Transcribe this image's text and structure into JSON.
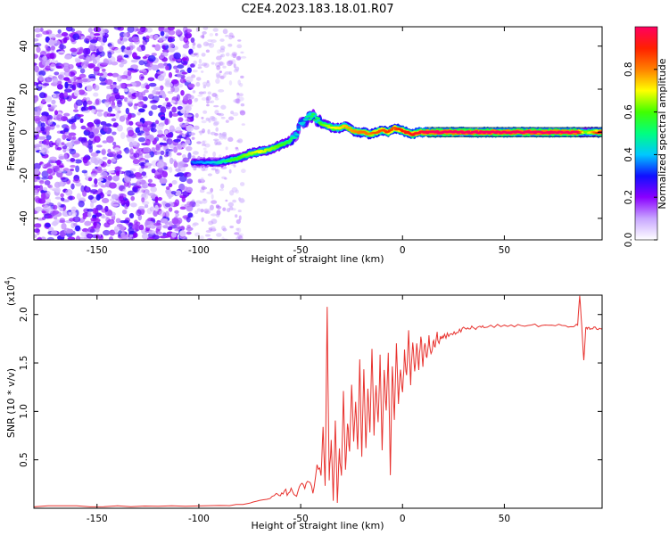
{
  "figure": {
    "title": "C2E4.2023.183.18.01.R07"
  },
  "chart_data": [
    {
      "type": "heatmap",
      "name": "spectrogram",
      "title": "C2E4.2023.183.18.01.R07",
      "xlabel": "Height of straight line (km)",
      "ylabel": "Frequency (Hz)",
      "xlim": [
        -181,
        98
      ],
      "ylim": [
        -50,
        49
      ],
      "xticks": [
        -150,
        -100,
        -50,
        0,
        50
      ],
      "yticks": [
        -40,
        -20,
        0,
        20,
        40
      ],
      "colorbar": {
        "label": "Normalized spectral amplitude",
        "range": [
          0,
          1
        ],
        "ticks": [
          "0.0",
          "0.2",
          "0.4",
          "0.6",
          "0.8"
        ],
        "tick_values": [
          0.0,
          0.2,
          0.4,
          0.6,
          0.8
        ],
        "colors": [
          "#ffffff",
          "#c8a6ff",
          "#8a00ff",
          "#1010ff",
          "#00c8ff",
          "#00ff80",
          "#40ff00",
          "#ffff00",
          "#ff8000",
          "#ff2000",
          "#ff0060"
        ]
      },
      "noise_region_x": [
        -181,
        -103
      ],
      "sparse_noise_x": [
        -103,
        -78
      ],
      "ridge": {
        "x": [
          -103,
          -95,
          -90,
          -85,
          -80,
          -75,
          -70,
          -65,
          -60,
          -55,
          -52,
          -50,
          -48,
          -46,
          -44,
          -42,
          -40,
          -37,
          -34,
          -31,
          -28,
          -25,
          -22,
          -19,
          -16,
          -13,
          -10,
          -7,
          -4,
          -1,
          2,
          5,
          8,
          11,
          15,
          30,
          50,
          70,
          86,
          90,
          98
        ],
        "y": [
          -14,
          -14,
          -14,
          -13,
          -12,
          -10,
          -9,
          -8,
          -6,
          -4,
          -1,
          4,
          5,
          7,
          8,
          6,
          4,
          3,
          2,
          2,
          3,
          1,
          0,
          0,
          -1,
          0,
          1,
          0,
          2,
          1,
          0,
          -1,
          0,
          0,
          0,
          0,
          0,
          0,
          0,
          0,
          0
        ],
        "amp": [
          0.35,
          0.4,
          0.45,
          0.55,
          0.6,
          0.65,
          0.7,
          0.65,
          0.6,
          0.55,
          0.45,
          0.4,
          0.45,
          0.5,
          0.55,
          0.5,
          0.6,
          0.65,
          0.7,
          0.72,
          0.75,
          0.78,
          0.8,
          0.82,
          0.8,
          0.85,
          0.85,
          0.88,
          0.85,
          0.9,
          0.92,
          0.92,
          0.95,
          0.97,
          1.0,
          1.0,
          1.0,
          1.0,
          1.0,
          0.6,
          1.0
        ]
      }
    },
    {
      "type": "line",
      "name": "snr",
      "xlabel": "Height of straight line (km)",
      "ylabel": "SNR (10 * v/v)",
      "y_multiplier": "(x10",
      "y_multiplier_exp": "4",
      "xlim": [
        -181,
        98
      ],
      "ylim": [
        0,
        2.2
      ],
      "xticks": [
        -150,
        -100,
        -50,
        0,
        50
      ],
      "yticks": [
        0.5,
        1.0,
        1.5,
        2.0
      ],
      "ytick_labels": [
        "0.5",
        "1.0",
        "1.5",
        "2.0"
      ],
      "series": [
        {
          "color": "#e8322e",
          "x": [
            -181,
            -160,
            -140,
            -120,
            -100,
            -85,
            -75,
            -70,
            -65,
            -62,
            -60,
            -58,
            -56,
            -54,
            -52,
            -50,
            -48,
            -46,
            -44,
            -42,
            -40,
            -39,
            -38,
            -37,
            -36,
            -35,
            -34,
            -33,
            -32,
            -31,
            -30,
            -29,
            -28,
            -27,
            -26,
            -25,
            -24,
            -23,
            -22,
            -21,
            -20,
            -19,
            -18,
            -17,
            -16,
            -15,
            -14,
            -13,
            -12,
            -11,
            -10,
            -9,
            -8,
            -7,
            -6,
            -5,
            -4,
            -3,
            -2,
            -1,
            0,
            1,
            2,
            3,
            4,
            5,
            6,
            7,
            8,
            9,
            10,
            11,
            12,
            13,
            14,
            15,
            16,
            17,
            18,
            19,
            20,
            22,
            24,
            26,
            28,
            30,
            32,
            34,
            36,
            38,
            40,
            45,
            50,
            55,
            60,
            65,
            70,
            75,
            80,
            84,
            86,
            87,
            88,
            89,
            90,
            91,
            92,
            94,
            96,
            98
          ],
          "y": [
            0.02,
            0.02,
            0.02,
            0.02,
            0.03,
            0.03,
            0.05,
            0.08,
            0.1,
            0.15,
            0.13,
            0.18,
            0.15,
            0.2,
            0.14,
            0.25,
            0.2,
            0.3,
            0.15,
            0.45,
            0.35,
            0.8,
            0.2,
            2.05,
            0.3,
            0.7,
            0.1,
            0.9,
            0.05,
            0.6,
            0.3,
            1.2,
            0.4,
            0.9,
            0.55,
            1.3,
            0.7,
            1.1,
            0.6,
            1.5,
            0.5,
            1.45,
            0.6,
            1.2,
            0.8,
            1.65,
            0.75,
            1.3,
            0.9,
            1.55,
            0.6,
            1.4,
            1.0,
            1.6,
            0.35,
            1.5,
            0.9,
            1.7,
            1.1,
            1.45,
            1.2,
            1.6,
            1.35,
            1.8,
            1.3,
            1.75,
            1.4,
            1.72,
            1.45,
            1.78,
            1.5,
            1.7,
            1.55,
            1.75,
            1.6,
            1.72,
            1.65,
            1.8,
            1.7,
            1.78,
            1.75,
            1.8,
            1.78,
            1.83,
            1.82,
            1.85,
            1.86,
            1.87,
            1.86,
            1.88,
            1.87,
            1.88,
            1.89,
            1.88,
            1.89,
            1.89,
            1.88,
            1.89,
            1.88,
            1.88,
            1.9,
            2.2,
            1.88,
            1.52,
            1.85,
            1.86,
            1.85,
            1.86,
            1.85,
            1.85
          ]
        }
      ]
    }
  ]
}
